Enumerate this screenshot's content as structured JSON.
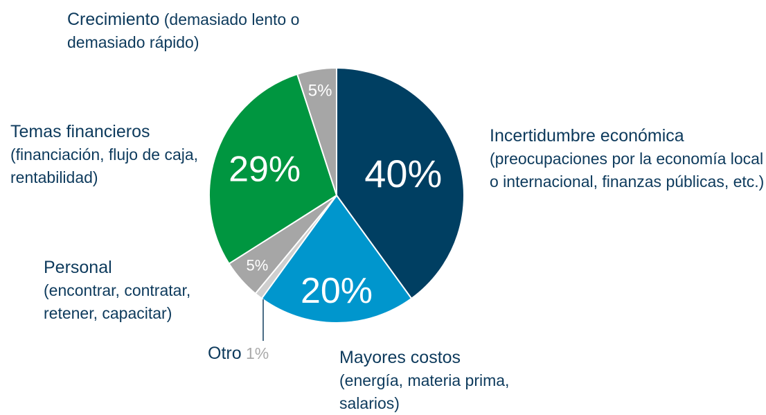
{
  "chart_data": {
    "type": "pie",
    "categories": [
      "Incertidumbre económica",
      "Mayores costos",
      "Otro",
      "Personal",
      "Temas financieros",
      "Crecimiento"
    ],
    "descriptions": [
      "(preocupaciones por la economía local o internacional, finanzas públicas, etc.)",
      "(energía, materia prima, salarios)",
      null,
      "(encontrar, contratar, retener, capacitar)",
      "(financiación, flujo de caja, rentabilidad)",
      "(demasiado lento o demasiado rápido)"
    ],
    "values": [
      40,
      20,
      1,
      5,
      29,
      5
    ],
    "value_labels": [
      "40%",
      "20%",
      "1%",
      "5%",
      "29%",
      "5%"
    ],
    "colors": [
      "#003f62",
      "#0096cd",
      "#cfcfcf",
      "#a6a6a6",
      "#009640",
      "#a6a6a6"
    ]
  }
}
